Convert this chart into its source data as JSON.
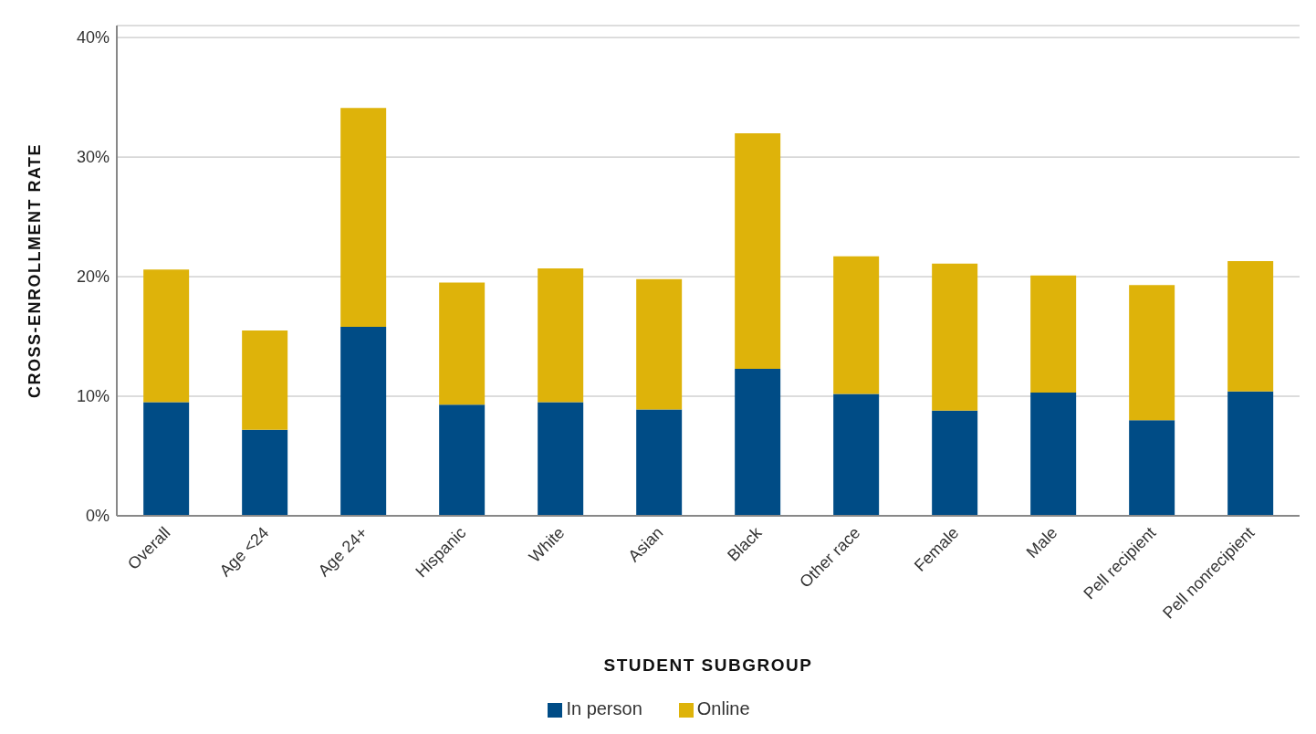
{
  "chart_data": {
    "type": "bar",
    "stacked": true,
    "xlabel": "STUDENT SUBGROUP",
    "ylabel": "CROSS-ENROLLMENT RATE",
    "categories": [
      "Overall",
      "Age <24",
      "Age 24+",
      "Hispanic",
      "White",
      "Asian",
      "Black",
      "Other race",
      "Female",
      "Male",
      "Pell recipient",
      "Pell nonrecipient"
    ],
    "series": [
      {
        "name": "In person",
        "color": "#004c86",
        "values": [
          9.5,
          7.2,
          15.8,
          9.3,
          9.5,
          8.9,
          12.3,
          10.2,
          8.8,
          10.3,
          8.0,
          10.4
        ]
      },
      {
        "name": "Online",
        "color": "#deb30a",
        "values": [
          11.1,
          8.3,
          18.3,
          10.2,
          11.2,
          10.9,
          19.7,
          11.5,
          12.3,
          9.8,
          11.3,
          10.9
        ]
      }
    ],
    "ylim": [
      0,
      41
    ],
    "yticks": [
      {
        "value": 0,
        "label": "0%"
      },
      {
        "value": 10,
        "label": "10%"
      },
      {
        "value": 20,
        "label": "20%"
      },
      {
        "value": 30,
        "label": "30%"
      },
      {
        "value": 40,
        "label": "40%"
      }
    ],
    "grid": "y",
    "legend": "bottom"
  }
}
